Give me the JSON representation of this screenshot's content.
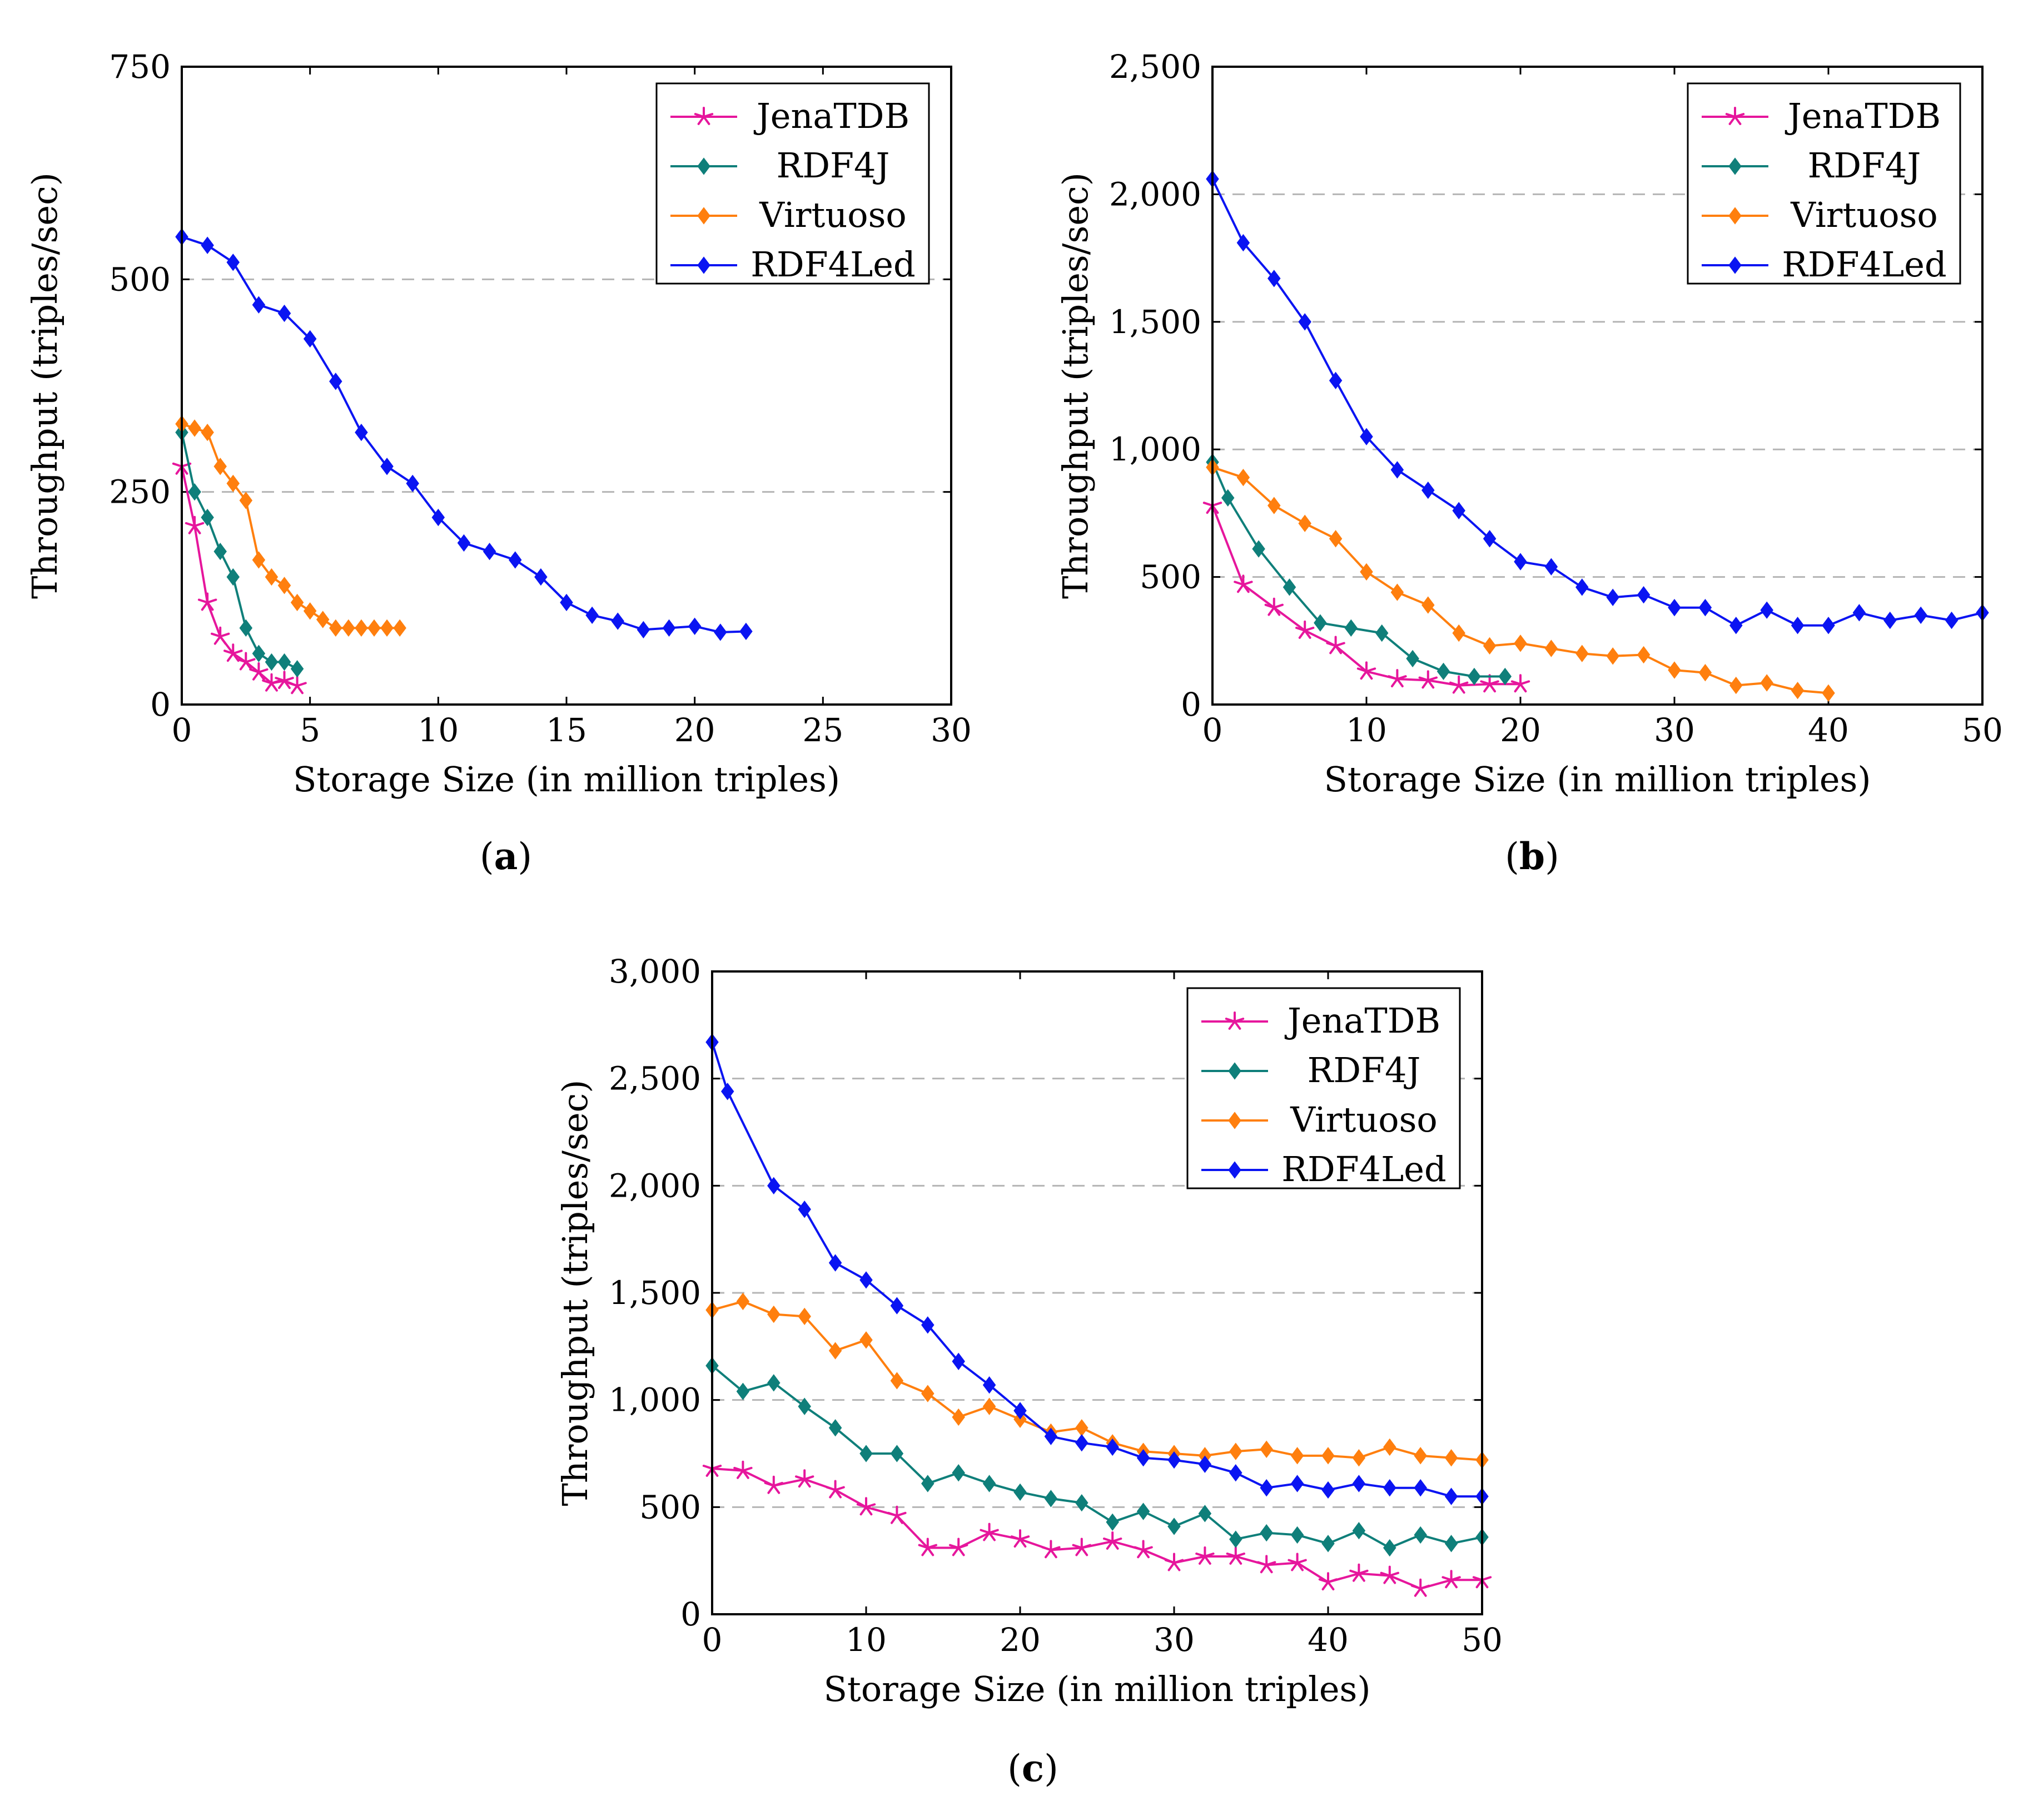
{
  "series_styles": [
    {
      "name": "JenaTDB",
      "color": "#e6169c",
      "marker": "star"
    },
    {
      "name": "RDF4J",
      "color": "#0f7f7a",
      "marker": "diamond"
    },
    {
      "name": "Virtuoso",
      "color": "#ff7f0e",
      "marker": "diamond"
    },
    {
      "name": "RDF4Led",
      "color": "#0a14f2",
      "marker": "diamond"
    }
  ],
  "chart_data": [
    {
      "type": "line",
      "caption": "a",
      "xlabel": "Storage Size (in million triples)",
      "ylabel": "Throughput (triples/sec)",
      "xlim": [
        0,
        30
      ],
      "ylim": [
        0,
        750
      ],
      "xticks": [
        0,
        5,
        10,
        15,
        20,
        25,
        30
      ],
      "xtick_labels": [
        "0",
        "5",
        "10",
        "15",
        "20",
        "25",
        "30"
      ],
      "yticks": [
        0,
        250,
        500,
        750
      ],
      "ytick_labels": [
        "0",
        "250",
        "500",
        "750"
      ],
      "grid_y": [
        250,
        500
      ],
      "legend": "top-right",
      "series": [
        {
          "name": "JenaTDB",
          "x": [
            0,
            0.5,
            1,
            1.5,
            2,
            2.5,
            3,
            3.5,
            4,
            4.5
          ],
          "y": [
            280,
            210,
            120,
            80,
            60,
            50,
            38,
            25,
            28,
            22
          ]
        },
        {
          "name": "RDF4J",
          "x": [
            0,
            0.5,
            1,
            1.5,
            2,
            2.5,
            3,
            3.5,
            4,
            4.5
          ],
          "y": [
            320,
            250,
            220,
            180,
            150,
            90,
            60,
            50,
            50,
            42
          ]
        },
        {
          "name": "Virtuoso",
          "x": [
            0,
            0.5,
            1,
            1.5,
            2,
            2.5,
            3,
            3.5,
            4,
            4.5,
            5,
            5.5,
            6,
            6.5,
            7,
            7.5,
            8,
            8.5
          ],
          "y": [
            330,
            325,
            320,
            280,
            260,
            240,
            170,
            150,
            140,
            120,
            110,
            100,
            90,
            90,
            90,
            90,
            90,
            90
          ]
        },
        {
          "name": "RDF4Led",
          "x": [
            0,
            1,
            2,
            3,
            4,
            5,
            6,
            7,
            8,
            9,
            10,
            11,
            12,
            13,
            14,
            15,
            16,
            17,
            18,
            19,
            20,
            21,
            22
          ],
          "y": [
            550,
            540,
            520,
            470,
            460,
            430,
            380,
            320,
            280,
            260,
            220,
            190,
            180,
            170,
            150,
            120,
            105,
            98,
            88,
            90,
            92,
            85,
            86
          ]
        }
      ]
    },
    {
      "type": "line",
      "caption": "b",
      "xlabel": "Storage Size (in million triples)",
      "ylabel": "Throughput (triples/sec)",
      "xlim": [
        0,
        50
      ],
      "ylim": [
        0,
        2500
      ],
      "xticks": [
        0,
        10,
        20,
        30,
        40,
        50
      ],
      "xtick_labels": [
        "0",
        "10",
        "20",
        "30",
        "40",
        "50"
      ],
      "yticks": [
        0,
        500,
        1000,
        1500,
        2000,
        2500
      ],
      "ytick_labels": [
        "0",
        "500",
        "1,000",
        "1,500",
        "2,000",
        "2,500"
      ],
      "grid_y": [
        500,
        1000,
        1500,
        2000
      ],
      "legend": "top-right",
      "series": [
        {
          "name": "JenaTDB",
          "x": [
            0,
            2,
            4,
            6,
            8,
            10,
            12,
            14,
            16,
            18,
            20
          ],
          "y": [
            780,
            470,
            380,
            290,
            230,
            130,
            100,
            95,
            75,
            80,
            80
          ]
        },
        {
          "name": "RDF4J",
          "x": [
            0,
            1,
            3,
            5,
            7,
            9,
            11,
            13,
            15,
            17,
            19
          ],
          "y": [
            950,
            810,
            610,
            460,
            320,
            300,
            280,
            180,
            130,
            110,
            110
          ]
        },
        {
          "name": "Virtuoso",
          "x": [
            0,
            2,
            4,
            6,
            8,
            10,
            12,
            14,
            16,
            18,
            20,
            22,
            24,
            26,
            28,
            30,
            32,
            34,
            36,
            38,
            40
          ],
          "y": [
            930,
            890,
            780,
            710,
            650,
            520,
            440,
            390,
            280,
            230,
            240,
            220,
            200,
            190,
            195,
            135,
            125,
            75,
            85,
            55,
            45
          ]
        },
        {
          "name": "RDF4Led",
          "x": [
            0,
            2,
            4,
            6,
            8,
            10,
            12,
            14,
            16,
            18,
            20,
            22,
            24,
            26,
            28,
            30,
            32,
            34,
            36,
            38,
            40,
            42,
            44,
            46,
            48,
            50
          ],
          "y": [
            2060,
            1810,
            1670,
            1500,
            1270,
            1050,
            920,
            840,
            760,
            650,
            560,
            540,
            460,
            420,
            430,
            380,
            380,
            310,
            370,
            310,
            310,
            360,
            330,
            350,
            330,
            360
          ]
        }
      ]
    },
    {
      "type": "line",
      "caption": "c",
      "xlabel": "Storage Size (in million triples)",
      "ylabel": "Throughput (triples/sec)",
      "xlim": [
        0,
        50
      ],
      "ylim": [
        0,
        3000
      ],
      "xticks": [
        0,
        10,
        20,
        30,
        40,
        50
      ],
      "xtick_labels": [
        "0",
        "10",
        "20",
        "30",
        "40",
        "50"
      ],
      "yticks": [
        0,
        500,
        1000,
        1500,
        2000,
        2500,
        3000
      ],
      "ytick_labels": [
        "0",
        "500",
        "1,000",
        "1,500",
        "2,000",
        "2,500",
        "3,000"
      ],
      "grid_y": [
        500,
        1000,
        1500,
        2000,
        2500
      ],
      "legend": "top-right",
      "series": [
        {
          "name": "JenaTDB",
          "x": [
            0,
            2,
            4,
            6,
            8,
            10,
            12,
            14,
            16,
            18,
            20,
            22,
            24,
            26,
            28,
            30,
            32,
            34,
            36,
            38,
            40,
            42,
            44,
            46,
            48,
            50
          ],
          "y": [
            680,
            670,
            600,
            630,
            580,
            500,
            460,
            310,
            310,
            380,
            350,
            300,
            310,
            340,
            300,
            240,
            270,
            270,
            230,
            240,
            150,
            190,
            180,
            120,
            160,
            160
          ]
        },
        {
          "name": "RDF4J",
          "x": [
            0,
            2,
            4,
            6,
            8,
            10,
            12,
            14,
            16,
            18,
            20,
            22,
            24,
            26,
            28,
            30,
            32,
            34,
            36,
            38,
            40,
            42,
            44,
            46,
            48,
            50
          ],
          "y": [
            1160,
            1040,
            1080,
            970,
            870,
            750,
            750,
            610,
            660,
            610,
            570,
            540,
            520,
            430,
            480,
            410,
            470,
            350,
            380,
            370,
            330,
            390,
            310,
            370,
            330,
            360
          ]
        },
        {
          "name": "Virtuoso",
          "x": [
            0,
            2,
            4,
            6,
            8,
            10,
            12,
            14,
            16,
            18,
            20,
            22,
            24,
            26,
            28,
            30,
            32,
            34,
            36,
            38,
            40,
            42,
            44,
            46,
            48,
            50
          ],
          "y": [
            1420,
            1460,
            1400,
            1390,
            1230,
            1280,
            1090,
            1030,
            920,
            970,
            910,
            850,
            870,
            800,
            760,
            750,
            740,
            760,
            770,
            740,
            740,
            730,
            780,
            740,
            730,
            720
          ]
        },
        {
          "name": "RDF4Led",
          "x": [
            0,
            1,
            4,
            6,
            8,
            10,
            12,
            14,
            16,
            18,
            20,
            22,
            24,
            26,
            28,
            30,
            32,
            34,
            36,
            38,
            40,
            42,
            44,
            46,
            48,
            50
          ],
          "y": [
            2670,
            2440,
            2000,
            1890,
            1640,
            1560,
            1440,
            1350,
            1180,
            1070,
            950,
            830,
            800,
            780,
            730,
            720,
            700,
            660,
            590,
            610,
            580,
            610,
            590,
            590,
            550,
            550
          ]
        }
      ]
    }
  ]
}
